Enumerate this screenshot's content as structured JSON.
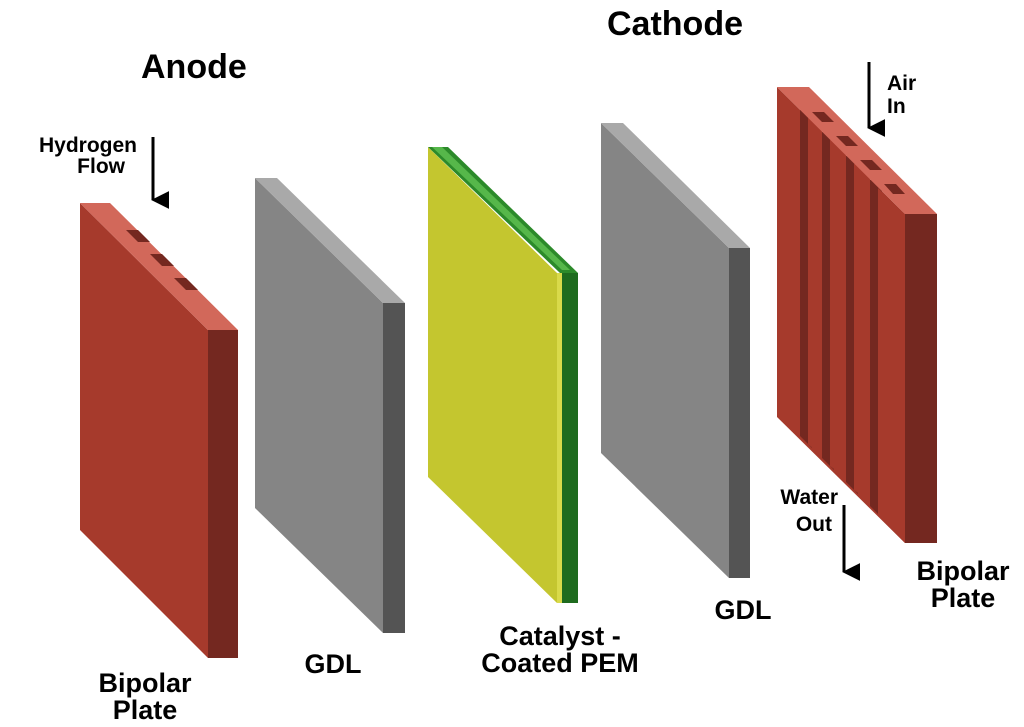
{
  "sides": {
    "anode": "Anode",
    "cathode": "Cathode"
  },
  "flows": {
    "hydrogen": [
      "Hydrogen",
      "Flow"
    ],
    "air": [
      "Air",
      "In"
    ],
    "water": [
      "Water",
      "Out"
    ]
  },
  "layers": {
    "anode_plate": [
      "Bipolar",
      "Plate"
    ],
    "anode_gdl": "GDL",
    "pem": [
      "Catalyst -",
      "Coated PEM"
    ],
    "cathode_gdl": "GDL",
    "cathode_plate": [
      "Bipolar",
      "Plate"
    ]
  },
  "colors": {
    "plate_front": "#A63A2C",
    "plate_top": "#D2685A",
    "plate_side": "#742820",
    "gdl_front": "#858585",
    "gdl_top": "#A9A9A9",
    "gdl_side": "#545454",
    "pem_front": "#C4C62F",
    "pem_green": "#2C8A2A",
    "pem_green_light": "#56B74A",
    "pem_side": "#1E6B1E",
    "arrow": "#000000"
  }
}
